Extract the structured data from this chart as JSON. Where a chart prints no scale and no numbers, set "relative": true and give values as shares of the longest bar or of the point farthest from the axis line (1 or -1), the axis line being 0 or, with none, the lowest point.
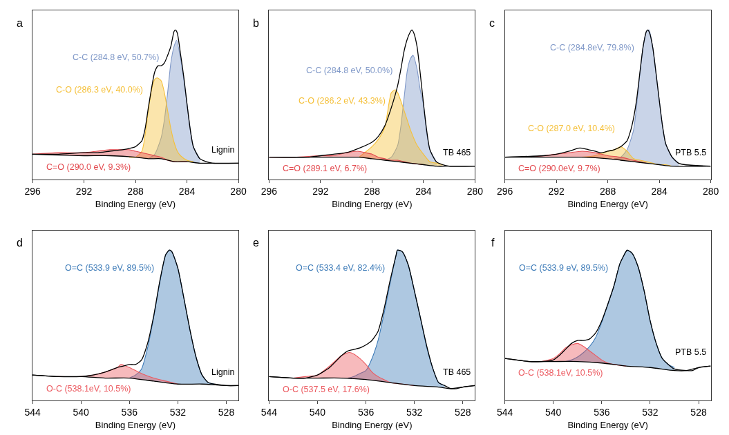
{
  "chart_data": [
    {
      "type": "line",
      "title": "a",
      "xlabel": "Binding Energy (eV)",
      "relative": true,
      "xlim": [
        296,
        280
      ],
      "xticks": [
        296,
        292,
        288,
        284,
        280
      ],
      "series": [
        {
          "name": "Lignin",
          "color": "#000000",
          "x": [
            296,
            294,
            292,
            291,
            290,
            289,
            288.4,
            288,
            287.5,
            287.25,
            287,
            286.75,
            286.5,
            286.25,
            286,
            285.75,
            285.5,
            285.25,
            285,
            284.9,
            284.75,
            284.5,
            284.25,
            284,
            283.75,
            283.5,
            283,
            282.5,
            282,
            280
          ],
          "values": [
            0.17,
            0.17,
            0.18,
            0.18,
            0.19,
            0.2,
            0.21,
            0.22,
            0.26,
            0.34,
            0.48,
            0.61,
            0.72,
            0.76,
            0.76,
            0.78,
            0.83,
            0.89,
            0.99,
            1.0,
            0.98,
            0.84,
            0.69,
            0.51,
            0.34,
            0.22,
            0.14,
            0.12,
            0.11,
            0.11
          ]
        },
        {
          "color": "#000000",
          "x": [
            296,
            292,
            290,
            288,
            287,
            286,
            285,
            284,
            283,
            282,
            280
          ],
          "values": [
            0.17,
            0.16,
            0.16,
            0.15,
            0.14,
            0.14,
            0.12,
            0.12,
            0.11,
            0.11,
            0.11
          ]
        },
        {
          "name": "C-C (284.8 eV, 50.7%)",
          "type": "area",
          "color": "#7f98c8",
          "x": [
            287,
            286.5,
            286,
            285.75,
            285.5,
            285.25,
            285,
            284.8,
            284.5,
            284.25,
            284,
            283.75,
            283.5,
            283
          ],
          "values": [
            0.14,
            0.17,
            0.28,
            0.4,
            0.58,
            0.78,
            0.89,
            0.93,
            0.81,
            0.67,
            0.51,
            0.34,
            0.22,
            0.14
          ]
        },
        {
          "name": "C-O (286.3 eV, 40.0%)",
          "type": "area",
          "color": "#f5c03a",
          "x": [
            288.5,
            288,
            287.5,
            287,
            286.75,
            286.5,
            286.3,
            286,
            285.75,
            285.5,
            285.25,
            285,
            284.75,
            284.5,
            284,
            283.5
          ],
          "values": [
            0.15,
            0.15,
            0.19,
            0.46,
            0.6,
            0.67,
            0.68,
            0.66,
            0.58,
            0.46,
            0.34,
            0.25,
            0.19,
            0.16,
            0.13,
            0.12
          ]
        },
        {
          "name": "C=O (290.0 eV, 9.3%)",
          "type": "area",
          "color": "#e34a4f",
          "x": [
            296,
            294,
            292,
            291,
            290,
            289,
            288.5,
            288,
            287.5,
            287,
            286.5,
            286,
            285.5,
            285,
            284
          ],
          "values": [
            0.17,
            0.18,
            0.18,
            0.19,
            0.2,
            0.2,
            0.2,
            0.19,
            0.18,
            0.17,
            0.16,
            0.15,
            0.13,
            0.12,
            0.12
          ]
        }
      ]
    },
    {
      "type": "line",
      "title": "b",
      "xlabel": "Binding Energy (eV)",
      "relative": true,
      "xlim": [
        296,
        280
      ],
      "xticks": [
        296,
        292,
        288,
        284,
        280
      ],
      "series": [
        {
          "name": "TB 465",
          "color": "#000000",
          "x": [
            296,
            293,
            292,
            291,
            290,
            289,
            288,
            287.5,
            287,
            286.5,
            286,
            285.75,
            285.5,
            285.25,
            285,
            284.9,
            284.75,
            284.5,
            284.25,
            284,
            283.75,
            283.5,
            283,
            282.5,
            282,
            280
          ],
          "values": [
            0.15,
            0.15,
            0.16,
            0.17,
            0.18,
            0.21,
            0.25,
            0.29,
            0.36,
            0.48,
            0.63,
            0.74,
            0.86,
            0.94,
            0.99,
            1.0,
            0.98,
            0.89,
            0.71,
            0.51,
            0.33,
            0.2,
            0.12,
            0.1,
            0.09,
            0.09
          ]
        },
        {
          "color": "#000000",
          "x": [
            296,
            292,
            290,
            289,
            288,
            287,
            286,
            285,
            284,
            283,
            282,
            280
          ],
          "values": [
            0.15,
            0.15,
            0.15,
            0.15,
            0.14,
            0.13,
            0.12,
            0.11,
            0.1,
            0.09,
            0.09,
            0.09
          ]
        },
        {
          "name": "C-C (284.8 eV, 50.0%)",
          "type": "area",
          "color": "#7f98c8",
          "x": [
            287,
            286.5,
            286,
            285.75,
            285.5,
            285.25,
            285,
            284.8,
            284.5,
            284.25,
            284,
            283.75,
            283.5,
            283
          ],
          "values": [
            0.13,
            0.15,
            0.23,
            0.36,
            0.55,
            0.73,
            0.81,
            0.83,
            0.74,
            0.6,
            0.5,
            0.31,
            0.2,
            0.12
          ]
        },
        {
          "name": "C-O (286.2 eV, 43.3%)",
          "type": "area",
          "color": "#f5c03a",
          "x": [
            289,
            288,
            287.5,
            287,
            286.5,
            286.2,
            286,
            285.5,
            285,
            284.5,
            284,
            283.5,
            283,
            282.5
          ],
          "values": [
            0.15,
            0.22,
            0.27,
            0.35,
            0.58,
            0.6,
            0.58,
            0.46,
            0.33,
            0.23,
            0.17,
            0.12,
            0.11,
            0.1
          ]
        },
        {
          "name": "C=O (289.1 eV, 6.7%)",
          "type": "area",
          "color": "#e34a4f",
          "x": [
            296,
            294,
            292,
            291,
            290,
            289.1,
            288.5,
            288,
            287.5,
            287,
            286.5,
            286,
            285,
            284
          ],
          "values": [
            0.15,
            0.15,
            0.16,
            0.16,
            0.18,
            0.19,
            0.18,
            0.17,
            0.15,
            0.14,
            0.13,
            0.13,
            0.11,
            0.1
          ]
        }
      ]
    },
    {
      "type": "line",
      "title": "c",
      "xlabel": "Binding Energy (eV)",
      "relative": true,
      "xlim": [
        296,
        280
      ],
      "xticks": [
        296,
        292,
        288,
        284,
        280
      ],
      "series": [
        {
          "name": "PTB 5.5",
          "color": "#000000",
          "x": [
            296,
            293,
            292,
            291,
            290.3,
            290,
            289.5,
            289,
            288.5,
            288,
            287.5,
            287,
            286.5,
            286.25,
            286,
            285.75,
            285.5,
            285.25,
            285,
            284.9,
            284.75,
            284.5,
            284.25,
            284,
            283.75,
            283.5,
            283,
            282.5,
            282,
            280
          ],
          "values": [
            0.15,
            0.16,
            0.17,
            0.19,
            0.21,
            0.21,
            0.2,
            0.19,
            0.18,
            0.19,
            0.2,
            0.22,
            0.26,
            0.32,
            0.41,
            0.54,
            0.72,
            0.89,
            0.99,
            1.0,
            0.98,
            0.88,
            0.71,
            0.53,
            0.36,
            0.24,
            0.15,
            0.11,
            0.1,
            0.09
          ]
        },
        {
          "color": "#000000",
          "x": [
            296,
            292,
            290,
            288,
            287,
            286,
            285,
            284,
            283,
            280
          ],
          "values": [
            0.15,
            0.15,
            0.15,
            0.14,
            0.13,
            0.12,
            0.11,
            0.1,
            0.09,
            0.09
          ]
        },
        {
          "name": "C-C (284.8eV, 79.8%)",
          "type": "area",
          "color": "#7f98c8",
          "x": [
            287.5,
            287,
            286.5,
            286,
            285.75,
            285.5,
            285.25,
            285,
            284.8,
            284.5,
            284.25,
            284,
            283.75,
            283.5,
            283,
            282.5
          ],
          "values": [
            0.14,
            0.15,
            0.2,
            0.33,
            0.5,
            0.71,
            0.89,
            0.99,
            1.0,
            0.88,
            0.71,
            0.53,
            0.36,
            0.24,
            0.15,
            0.11
          ]
        },
        {
          "name": "C-O (287.0 eV, 10.4%)",
          "type": "area",
          "color": "#f5c03a",
          "x": [
            290,
            289,
            288,
            287.5,
            287,
            286.5,
            286,
            285.5,
            285,
            284.5,
            284,
            283.5,
            283
          ],
          "values": [
            0.15,
            0.16,
            0.19,
            0.2,
            0.22,
            0.19,
            0.14,
            0.13,
            0.12,
            0.11,
            0.1,
            0.1,
            0.09
          ]
        },
        {
          "name": "C=O (290.0eV, 9.7%)",
          "type": "area",
          "color": "#e34a4f",
          "x": [
            294,
            293,
            292,
            291,
            290,
            289,
            288,
            287,
            286,
            285
          ],
          "values": [
            0.15,
            0.16,
            0.17,
            0.18,
            0.19,
            0.18,
            0.16,
            0.15,
            0.13,
            0.11
          ]
        }
      ]
    },
    {
      "type": "line",
      "title": "d",
      "xlabel": "Binding Energy (eV)",
      "relative": true,
      "xlim": [
        544,
        527
      ],
      "xticks": [
        544,
        540,
        536,
        532,
        528
      ],
      "series": [
        {
          "name": "Lignin",
          "color": "#000000",
          "x": [
            544,
            542,
            540,
            539,
            538,
            537,
            536.5,
            536,
            535.5,
            535,
            534.5,
            534,
            533.5,
            533,
            532.7,
            532.5,
            532,
            531.5,
            531,
            530.5,
            530,
            529.5,
            529,
            528,
            527
          ],
          "values": [
            0.17,
            0.16,
            0.16,
            0.17,
            0.19,
            0.22,
            0.23,
            0.24,
            0.24,
            0.27,
            0.38,
            0.56,
            0.79,
            0.97,
            1.0,
            0.99,
            0.88,
            0.68,
            0.47,
            0.29,
            0.17,
            0.12,
            0.11,
            0.1,
            0.1
          ]
        },
        {
          "color": "#000000",
          "x": [
            544,
            542,
            540,
            538,
            536,
            534,
            532,
            530,
            528,
            527
          ],
          "values": [
            0.17,
            0.16,
            0.16,
            0.15,
            0.15,
            0.13,
            0.11,
            0.11,
            0.1,
            0.1
          ]
        },
        {
          "name": "O=C (533.9 eV, 89.5%)",
          "type": "area",
          "color": "#3d7bb8",
          "x": [
            536,
            535.5,
            535,
            534.5,
            534,
            533.5,
            533,
            532.7,
            532.5,
            532,
            531.5,
            531,
            530.5,
            530,
            529.5,
            529
          ],
          "values": [
            0.15,
            0.17,
            0.21,
            0.35,
            0.55,
            0.78,
            0.97,
            1.0,
            0.99,
            0.88,
            0.68,
            0.47,
            0.29,
            0.17,
            0.12,
            0.11
          ]
        },
        {
          "name": "O-C (538.1eV, 10.5%)",
          "type": "area",
          "color": "#ec5a60",
          "x": [
            542,
            540,
            539,
            538,
            537,
            536.7,
            536,
            535,
            534,
            533,
            532
          ],
          "values": [
            0.16,
            0.16,
            0.17,
            0.19,
            0.22,
            0.24,
            0.22,
            0.18,
            0.15,
            0.13,
            0.11
          ]
        }
      ]
    },
    {
      "type": "line",
      "title": "e",
      "xlabel": "Binding Energy (eV)",
      "relative": true,
      "xlim": [
        544,
        527
      ],
      "xticks": [
        544,
        540,
        536,
        532,
        528
      ],
      "series": [
        {
          "name": "TB 465",
          "color": "#000000",
          "x": [
            544,
            542,
            541,
            540,
            539,
            538,
            537.5,
            537,
            536.5,
            536,
            535.5,
            535,
            534.5,
            534,
            533.5,
            533.4,
            533,
            532.5,
            532,
            531.5,
            531,
            530.5,
            530,
            529.5,
            529,
            528.5,
            528,
            527
          ],
          "values": [
            0.16,
            0.15,
            0.15,
            0.17,
            0.22,
            0.3,
            0.33,
            0.34,
            0.35,
            0.37,
            0.4,
            0.46,
            0.61,
            0.8,
            0.97,
            1.0,
            0.99,
            0.9,
            0.73,
            0.55,
            0.37,
            0.22,
            0.12,
            0.1,
            0.08,
            0.08,
            0.09,
            0.1
          ]
        },
        {
          "color": "#000000",
          "x": [
            544,
            542,
            540,
            538,
            536,
            534,
            532,
            530,
            529,
            528,
            527
          ],
          "values": [
            0.16,
            0.15,
            0.15,
            0.15,
            0.14,
            0.12,
            0.1,
            0.09,
            0.08,
            0.09,
            0.1
          ]
        },
        {
          "name": "O=C (533.4 eV, 82.4%)",
          "type": "area",
          "color": "#3d7bb8",
          "x": [
            537.5,
            537,
            536.5,
            536,
            535.5,
            535,
            534.5,
            534,
            533.5,
            533.4,
            533,
            532.5,
            532,
            531.5,
            531,
            530.5,
            530,
            529.5
          ],
          "values": [
            0.15,
            0.16,
            0.18,
            0.2,
            0.28,
            0.4,
            0.58,
            0.78,
            0.97,
            1.0,
            0.99,
            0.9,
            0.73,
            0.55,
            0.36,
            0.22,
            0.12,
            0.1
          ]
        },
        {
          "name": "O-C (537.5 eV, 17.6%)",
          "type": "area",
          "color": "#ec5a60",
          "x": [
            542,
            541,
            540,
            539,
            538,
            537.4,
            537,
            536.5,
            536,
            535.5,
            535,
            534.5,
            534,
            533,
            532
          ],
          "values": [
            0.15,
            0.16,
            0.17,
            0.23,
            0.3,
            0.32,
            0.31,
            0.28,
            0.24,
            0.19,
            0.16,
            0.14,
            0.12,
            0.11,
            0.1
          ]
        }
      ]
    },
    {
      "type": "line",
      "title": "f",
      "xlabel": "Binding Energy (eV)",
      "relative": true,
      "xlim": [
        544,
        527
      ],
      "xticks": [
        544,
        540,
        536,
        532,
        528
      ],
      "series": [
        {
          "name": "PTB 5.5",
          "color": "#000000",
          "x": [
            544,
            543,
            542,
            541,
            540,
            539.5,
            539,
            538.5,
            538,
            537.5,
            537,
            536.5,
            536,
            535.5,
            535,
            534.5,
            534,
            533.9,
            533.5,
            533,
            532.5,
            532,
            531.5,
            531,
            530.5,
            530,
            529,
            528.5,
            528,
            527
          ],
          "values": [
            0.28,
            0.27,
            0.26,
            0.26,
            0.27,
            0.3,
            0.34,
            0.38,
            0.4,
            0.4,
            0.41,
            0.45,
            0.53,
            0.64,
            0.76,
            0.91,
            0.99,
            1.0,
            0.98,
            0.89,
            0.73,
            0.53,
            0.38,
            0.28,
            0.24,
            0.21,
            0.2,
            0.2,
            0.22,
            0.23
          ]
        },
        {
          "color": "#000000",
          "x": [
            544,
            542,
            540,
            538,
            536,
            534,
            532,
            530,
            529,
            528,
            527
          ],
          "values": [
            0.28,
            0.26,
            0.26,
            0.26,
            0.25,
            0.23,
            0.22,
            0.2,
            0.2,
            0.22,
            0.23
          ]
        },
        {
          "name": "O=C (533.9 eV, 89.5%)",
          "type": "area",
          "color": "#3d7bb8",
          "x": [
            539,
            538.5,
            538,
            537.5,
            537,
            536.5,
            536,
            535.5,
            535,
            534.5,
            534,
            533.9,
            533.5,
            533,
            532.5,
            532,
            531.5,
            531,
            530.5,
            530
          ],
          "values": [
            0.26,
            0.27,
            0.29,
            0.32,
            0.36,
            0.42,
            0.52,
            0.64,
            0.76,
            0.91,
            0.99,
            1.0,
            0.98,
            0.89,
            0.73,
            0.53,
            0.38,
            0.28,
            0.24,
            0.22
          ]
        },
        {
          "name": "O-C (538.1eV, 10.5%)",
          "type": "area",
          "color": "#ec5a60",
          "x": [
            541,
            540,
            539.5,
            539,
            538.5,
            538,
            537.5,
            537,
            536.5,
            536,
            535.5,
            535,
            534
          ],
          "values": [
            0.26,
            0.28,
            0.31,
            0.35,
            0.37,
            0.38,
            0.36,
            0.33,
            0.3,
            0.27,
            0.25,
            0.24,
            0.23
          ]
        }
      ]
    }
  ]
}
